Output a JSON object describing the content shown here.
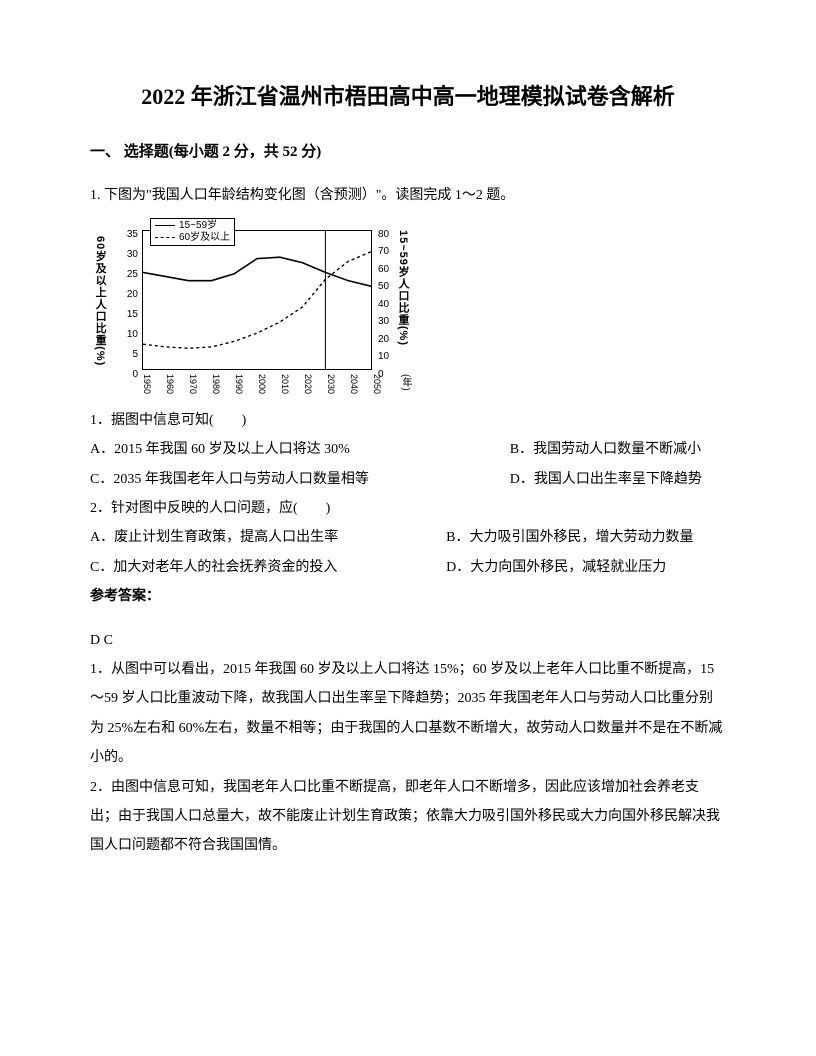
{
  "title": "2022 年浙江省温州市梧田高中高一地理模拟试卷含解析",
  "section_header": "一、 选择题(每小题 2 分，共 52 分)",
  "intro": "1. 下图为\"我国人口年龄结构变化图（含预测）\"。读图完成 1～2 题。",
  "chart": {
    "type": "line",
    "legend": {
      "solid": "15~59岁",
      "dashed": "60岁及以上"
    },
    "y_left_label": "60岁及以上人口比重(%)",
    "y_right_label": "15~59岁人口比重(%)",
    "y_left_ticks": [
      0,
      5,
      10,
      15,
      20,
      25,
      30,
      35
    ],
    "y_right_ticks": [
      0,
      10,
      20,
      30,
      40,
      50,
      60,
      70,
      80
    ],
    "x_ticks": [
      1950,
      1960,
      1970,
      1980,
      1990,
      2000,
      2010,
      2020,
      2030,
      2040,
      2050
    ],
    "x_unit": "(年)",
    "left_line_color": "#000000",
    "right_line_color": "#000000",
    "background_color": "#ffffff",
    "border_color": "#000000",
    "series_solid_points": [
      [
        0,
        0.7
      ],
      [
        0.1,
        0.67
      ],
      [
        0.2,
        0.64
      ],
      [
        0.3,
        0.64
      ],
      [
        0.4,
        0.69
      ],
      [
        0.5,
        0.8
      ],
      [
        0.6,
        0.81
      ],
      [
        0.7,
        0.77
      ],
      [
        0.8,
        0.7
      ],
      [
        0.9,
        0.64
      ],
      [
        1.0,
        0.6
      ]
    ],
    "series_dashed_points": [
      [
        0,
        0.18
      ],
      [
        0.1,
        0.16
      ],
      [
        0.2,
        0.15
      ],
      [
        0.3,
        0.16
      ],
      [
        0.4,
        0.2
      ],
      [
        0.5,
        0.26
      ],
      [
        0.6,
        0.34
      ],
      [
        0.7,
        0.45
      ],
      [
        0.8,
        0.65
      ],
      [
        0.9,
        0.78
      ],
      [
        1.0,
        0.85
      ]
    ]
  },
  "q1": {
    "stem": "1．据图中信息可知(　　)",
    "A": "A．2015 年我国 60 岁及以上人口将达 30%",
    "B": "B．我国劳动人口数量不断减小",
    "C": "C．2035 年我国老年人口与劳动人口数量相等",
    "D": "D．我国人口出生率呈下降趋势"
  },
  "q2": {
    "stem": "2．针对图中反映的人口问题，应(　　)",
    "A": "A．废止计划生育政策，提高人口出生率",
    "B": "B．大力吸引国外移民，增大劳动力数量",
    "C": "C．加大对老年人的社会抚养资金的投入",
    "D": "D．大力向国外移民，减轻就业压力"
  },
  "answer_label": "参考答案：",
  "answer_keys": "D C",
  "explain1": "1．从图中可以看出，2015 年我国 60 岁及以上人口将达 15%；60 岁及以上老年人口比重不断提高，15～59 岁人口比重波动下降，故我国人口出生率呈下降趋势；2035 年我国老年人口与劳动人口比重分别为 25%左右和 60%左右，数量不相等；由于我国的人口基数不断增大，故劳动人口数量并不是在不断减小的。",
  "explain2": "2．由图中信息可知，我国老年人口比重不断提高，即老年人口不断增多，因此应该增加社会养老支出；由于我国人口总量大，故不能废止计划生育政策；依靠大力吸引国外移民或大力向国外移民解决我国人口问题都不符合我国国情。"
}
